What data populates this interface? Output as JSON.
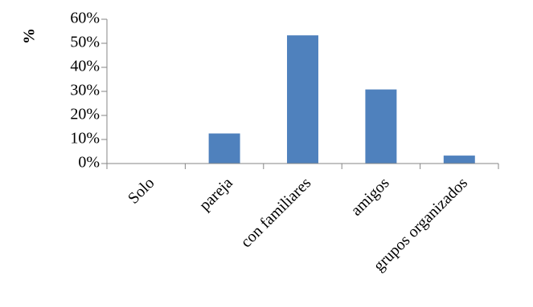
{
  "chart_data": {
    "type": "bar",
    "categories": [
      "Solo",
      "pareja",
      "con familiares",
      "amigos",
      "grupos organizados"
    ],
    "values": [
      0,
      12.5,
      53.3,
      30.8,
      3.3
    ],
    "ylabel": "%",
    "xlabel": "",
    "ylim": [
      0,
      60
    ],
    "yticks": [
      "0%",
      "10%",
      "20%",
      "30%",
      "40%",
      "50%",
      "60%"
    ],
    "grid": false,
    "legend": "none",
    "colors": {
      "bar": "#4f81bd",
      "axis": "#868686"
    }
  }
}
